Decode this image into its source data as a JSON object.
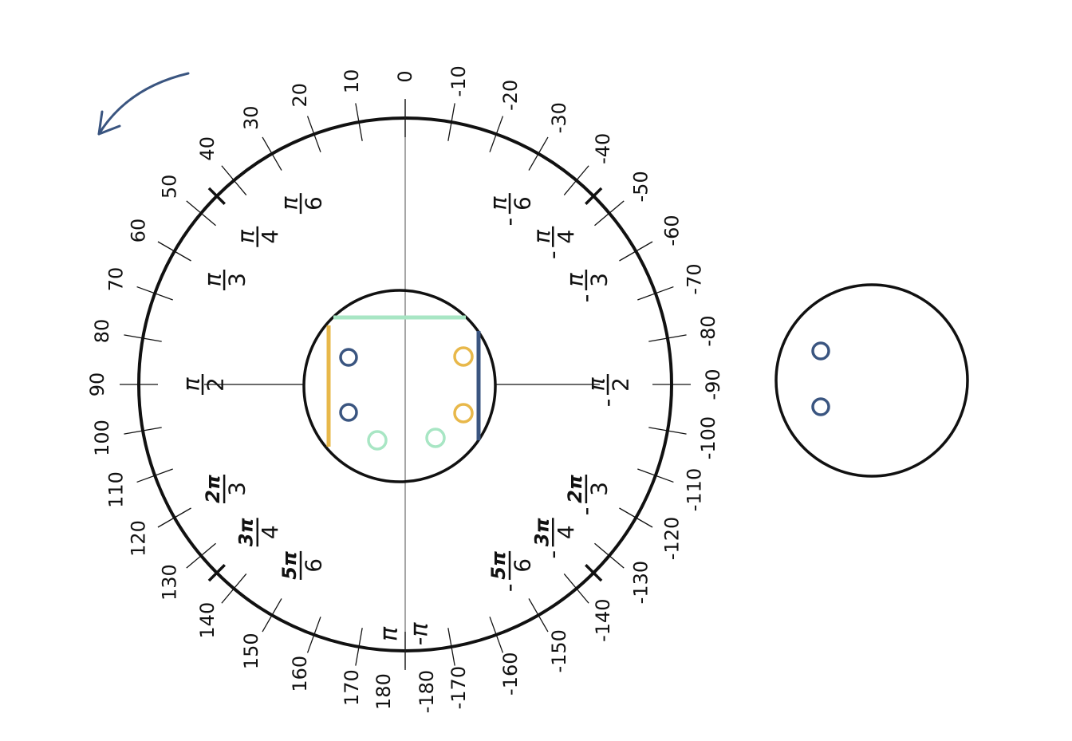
{
  "rotation_arrow": {
    "icon": "counterclockwise-arrow-icon",
    "color": "#3a5580"
  },
  "degree_labels_left": [
    "0",
    "10",
    "20",
    "30",
    "40",
    "50",
    "60",
    "70",
    "80",
    "90",
    "100",
    "110",
    "120",
    "130",
    "140",
    "150",
    "160",
    "170",
    "180"
  ],
  "degree_labels_right": [
    "-10",
    "-20",
    "-30",
    "-40",
    "-50",
    "-60",
    "-70",
    "-80",
    "-90",
    "-100",
    "-110",
    "-120",
    "-130",
    "-140",
    "-150",
    "-160",
    "-170",
    "-180"
  ],
  "radian_labels": [
    {
      "sign": "",
      "num": "π",
      "den": "6",
      "deg": 30
    },
    {
      "sign": "",
      "num": "π",
      "den": "4",
      "deg": 45
    },
    {
      "sign": "",
      "num": "π",
      "den": "3",
      "deg": 60
    },
    {
      "sign": "",
      "num": "π",
      "den": "2",
      "deg": 90
    },
    {
      "sign": "",
      "num": "2π",
      "den": "3",
      "deg": 120
    },
    {
      "sign": "",
      "num": "3π",
      "den": "4",
      "deg": 135
    },
    {
      "sign": "",
      "num": "5π",
      "den": "6",
      "deg": 150
    },
    {
      "sign": "-",
      "num": "π",
      "den": "6",
      "deg": -30
    },
    {
      "sign": "-",
      "num": "π",
      "den": "4",
      "deg": -45
    },
    {
      "sign": "-",
      "num": "π",
      "den": "3",
      "deg": -60
    },
    {
      "sign": "-",
      "num": "π",
      "den": "2",
      "deg": -90
    },
    {
      "sign": "-",
      "num": "2π",
      "den": "3",
      "deg": -120
    },
    {
      "sign": "-",
      "num": "3π",
      "den": "4",
      "deg": -135
    },
    {
      "sign": "-",
      "num": "5π",
      "den": "6",
      "deg": -150
    }
  ],
  "pi_label": "π",
  "neg_pi_label": "-π",
  "colors": {
    "navy": "#3a5580",
    "gold": "#e8b84a",
    "mint": "#a8e6c4",
    "outline": "#111111",
    "axis": "#777777"
  },
  "inner_diagram": {
    "edges": [
      {
        "name": "top-edge",
        "color": "mint"
      },
      {
        "name": "left-edge",
        "color": "gold"
      },
      {
        "name": "right-edge",
        "color": "navy"
      }
    ],
    "markers": [
      {
        "name": "navy-marker-upper",
        "color": "navy"
      },
      {
        "name": "navy-marker-lower",
        "color": "navy"
      },
      {
        "name": "gold-marker-upper",
        "color": "gold"
      },
      {
        "name": "gold-marker-lower",
        "color": "gold"
      },
      {
        "name": "mint-marker-left",
        "color": "mint"
      },
      {
        "name": "mint-marker-right",
        "color": "mint"
      }
    ]
  },
  "side_diagram": {
    "markers": [
      {
        "name": "side-navy-marker-upper",
        "color": "navy"
      },
      {
        "name": "side-navy-marker-lower",
        "color": "navy"
      }
    ]
  }
}
